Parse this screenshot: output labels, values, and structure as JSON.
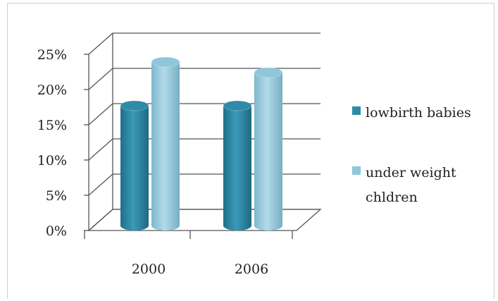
{
  "chart_data": {
    "type": "bar",
    "style": "3d-cylinder",
    "categories": [
      "2000",
      "2006"
    ],
    "series": [
      {
        "name": "lowbirth babies",
        "values": [
          17,
          17
        ],
        "color": "#2e8aa6"
      },
      {
        "name": "under weight chldren",
        "values": [
          23.2,
          21.7
        ],
        "color": "#8fc6da"
      }
    ],
    "y_ticks": [
      "0%",
      "5%",
      "10%",
      "15%",
      "20%",
      "25%"
    ],
    "ylim": [
      0,
      25
    ],
    "unit": "%",
    "grid": true,
    "legend": {
      "position": "right",
      "entries": [
        {
          "lines": [
            "lowbirth babies"
          ],
          "color": "#2e8aa6"
        },
        {
          "lines": [
            "under weight",
            "chldren"
          ],
          "color": "#8fc6da"
        }
      ]
    }
  }
}
